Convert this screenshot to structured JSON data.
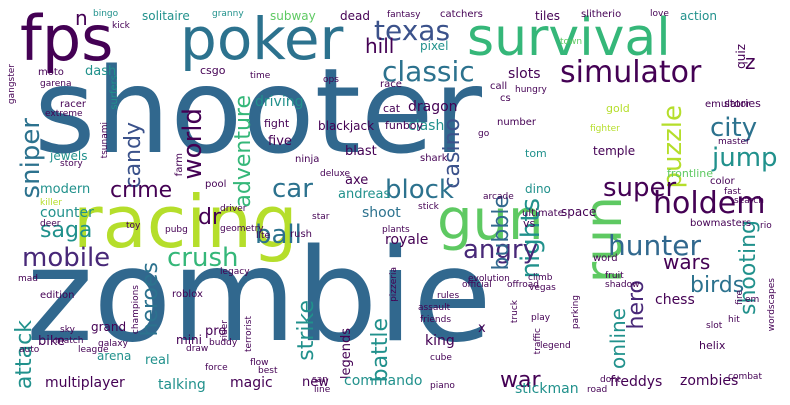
{
  "palette": {
    "dark_purple": "#440154",
    "indigo": "#3b528b",
    "blue": "#31688e",
    "slate": "#2c728e",
    "teal": "#21918c",
    "green": "#35b779",
    "lime": "#5ec962",
    "yellow_green": "#b5de2b",
    "yellow": "#fde725",
    "violet": "#482878"
  },
  "words": [
    {
      "text": "shooter"
    },
    {
      "text": "zombie"
    },
    {
      "text": "racing"
    },
    {
      "text": "poker"
    },
    {
      "text": "survival"
    },
    {
      "text": "fps"
    },
    {
      "text": "gun"
    },
    {
      "text": "run"
    },
    {
      "text": "classic"
    },
    {
      "text": "simulator"
    },
    {
      "text": "texas"
    },
    {
      "text": "holdem"
    },
    {
      "text": "hunter"
    },
    {
      "text": "world"
    },
    {
      "text": "nights"
    },
    {
      "text": "puzzle"
    },
    {
      "text": "city"
    },
    {
      "text": "jump"
    },
    {
      "text": "block"
    },
    {
      "text": "car"
    },
    {
      "text": "ball"
    },
    {
      "text": "crush"
    },
    {
      "text": "mobile"
    },
    {
      "text": "angry"
    },
    {
      "text": "super"
    },
    {
      "text": "sniper"
    },
    {
      "text": "saga"
    },
    {
      "text": "candy"
    },
    {
      "text": "adventure"
    },
    {
      "text": "casino"
    },
    {
      "text": "crime"
    },
    {
      "text": "dr"
    },
    {
      "text": "bubble"
    },
    {
      "text": "shooting"
    },
    {
      "text": "birds"
    },
    {
      "text": "hero"
    },
    {
      "text": "online"
    },
    {
      "text": "wars"
    },
    {
      "text": "war"
    },
    {
      "text": "battle"
    },
    {
      "text": "strike"
    },
    {
      "text": "heroes"
    },
    {
      "text": "attack"
    },
    {
      "text": "hill"
    },
    {
      "text": "slots"
    },
    {
      "text": "z"
    },
    {
      "text": "n"
    },
    {
      "text": "driving"
    },
    {
      "text": "five"
    },
    {
      "text": "blast"
    },
    {
      "text": "dragon"
    },
    {
      "text": "clash"
    },
    {
      "text": "shoot"
    },
    {
      "text": "king"
    },
    {
      "text": "legends"
    },
    {
      "text": "commando"
    },
    {
      "text": "zombies"
    },
    {
      "text": "multiplayer"
    },
    {
      "text": "talking"
    },
    {
      "text": "magic"
    },
    {
      "text": "new"
    },
    {
      "text": "stickman"
    },
    {
      "text": "freddys"
    },
    {
      "text": "chess"
    },
    {
      "text": "royale"
    },
    {
      "text": "counter"
    },
    {
      "text": "modern"
    },
    {
      "text": "jewels"
    },
    {
      "text": "axe"
    },
    {
      "text": "andreas"
    },
    {
      "text": "bike"
    },
    {
      "text": "grand"
    },
    {
      "text": "pro"
    },
    {
      "text": "arena"
    },
    {
      "text": "real"
    },
    {
      "text": "mini"
    },
    {
      "text": "solitaire"
    },
    {
      "text": "subway"
    },
    {
      "text": "dead"
    },
    {
      "text": "tiles"
    },
    {
      "text": "action"
    },
    {
      "text": "pixel"
    },
    {
      "text": "quiz"
    },
    {
      "text": "dash"
    },
    {
      "text": "csgo"
    },
    {
      "text": "bingo"
    },
    {
      "text": "granny"
    },
    {
      "text": "fantasy"
    },
    {
      "text": "catchers"
    },
    {
      "text": "slitherio"
    },
    {
      "text": "love"
    },
    {
      "text": "kick"
    },
    {
      "text": "moto"
    },
    {
      "text": "gangster"
    },
    {
      "text": "garena"
    },
    {
      "text": "surfers"
    },
    {
      "text": "time"
    },
    {
      "text": "ops"
    },
    {
      "text": "race"
    },
    {
      "text": "call"
    },
    {
      "text": "cs"
    },
    {
      "text": "hungry"
    },
    {
      "text": "emulator"
    },
    {
      "text": "town"
    },
    {
      "text": "racer"
    },
    {
      "text": "extreme"
    },
    {
      "text": "cat"
    },
    {
      "text": "gold"
    },
    {
      "text": "stories"
    },
    {
      "text": "fight"
    },
    {
      "text": "funboy"
    },
    {
      "text": "go"
    },
    {
      "text": "fighter"
    },
    {
      "text": "number"
    },
    {
      "text": "master"
    },
    {
      "text": "tom"
    },
    {
      "text": "temple"
    },
    {
      "text": "blackjack"
    },
    {
      "text": "ninja"
    },
    {
      "text": "shark"
    },
    {
      "text": "tsunami"
    },
    {
      "text": "story"
    },
    {
      "text": "farm"
    },
    {
      "text": "pool"
    },
    {
      "text": "color"
    },
    {
      "text": "deluxe"
    },
    {
      "text": "dino"
    },
    {
      "text": "frontline"
    },
    {
      "text": "killer"
    },
    {
      "text": "fast"
    },
    {
      "text": "search"
    },
    {
      "text": "arcade"
    },
    {
      "text": "stick"
    },
    {
      "text": "driver"
    },
    {
      "text": "ultimate"
    },
    {
      "text": "bowmasters"
    },
    {
      "text": "rio"
    },
    {
      "text": "deer"
    },
    {
      "text": "vs"
    },
    {
      "text": "space"
    },
    {
      "text": "star"
    },
    {
      "text": "toy"
    },
    {
      "text": "pubg"
    },
    {
      "text": "geometry"
    },
    {
      "text": "lite"
    },
    {
      "text": "plants"
    },
    {
      "text": "rush"
    },
    {
      "text": "evolution"
    },
    {
      "text": "mad"
    },
    {
      "text": "legacy"
    },
    {
      "text": "official"
    },
    {
      "text": "offroad"
    },
    {
      "text": "pizzeria"
    },
    {
      "text": "climb"
    },
    {
      "text": "vegas"
    },
    {
      "text": "word"
    },
    {
      "text": "fruit"
    },
    {
      "text": "shadow"
    },
    {
      "text": "edition"
    },
    {
      "text": "roblox"
    },
    {
      "text": "rules"
    },
    {
      "text": "assault"
    },
    {
      "text": "truck"
    },
    {
      "text": "play"
    },
    {
      "text": "parking"
    },
    {
      "text": "fire"
    },
    {
      "text": "em"
    },
    {
      "text": "hit"
    },
    {
      "text": "wordscapes"
    },
    {
      "text": "champions"
    },
    {
      "text": "draw"
    },
    {
      "text": "buddy"
    },
    {
      "text": "terrorist"
    },
    {
      "text": "rider"
    },
    {
      "text": "friends"
    },
    {
      "text": "x"
    },
    {
      "text": "traffic"
    },
    {
      "text": "legend"
    },
    {
      "text": "slot"
    },
    {
      "text": "helix"
    },
    {
      "text": "sky"
    },
    {
      "text": "auto"
    },
    {
      "text": "match"
    },
    {
      "text": "league"
    },
    {
      "text": "galaxy"
    },
    {
      "text": "force"
    },
    {
      "text": "flow"
    },
    {
      "text": "best"
    },
    {
      "text": "san"
    },
    {
      "text": "line"
    },
    {
      "text": "cube"
    },
    {
      "text": "piano"
    },
    {
      "text": "road"
    },
    {
      "text": "dont"
    },
    {
      "text": "combat"
    }
  ]
}
